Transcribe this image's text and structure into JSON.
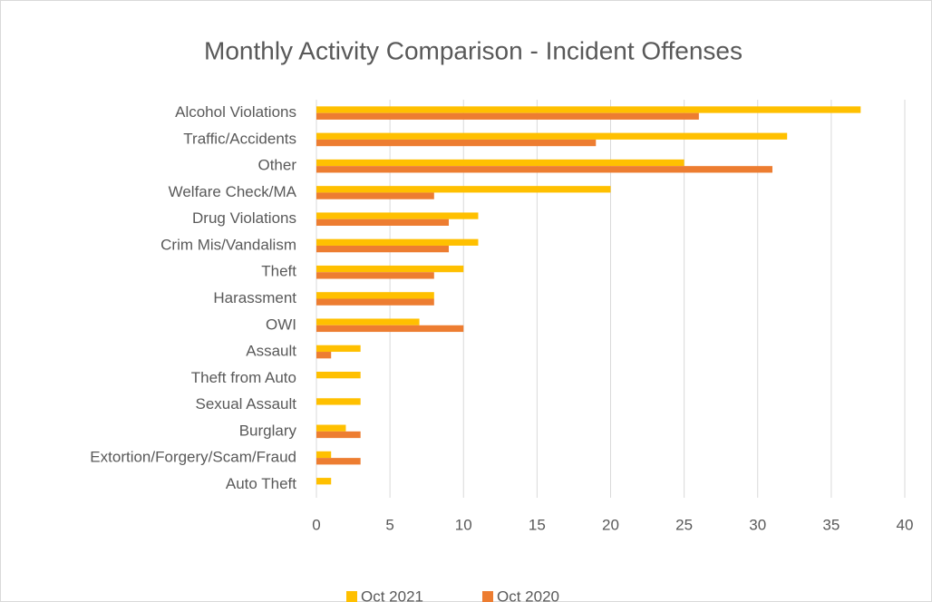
{
  "chart_data": {
    "type": "bar",
    "orientation": "horizontal",
    "title": "Monthly Activity Comparison - Incident Offenses",
    "categories": [
      "Alcohol Violations",
      "Traffic/Accidents",
      "Other",
      "Welfare Check/MA",
      "Drug Violations",
      "Crim Mis/Vandalism",
      "Theft",
      "Harassment",
      "OWI",
      "Assault",
      "Theft from Auto",
      "Sexual Assault",
      "Burglary",
      "Extortion/Forgery/Scam/Fraud",
      "Auto Theft"
    ],
    "series": [
      {
        "name": "Oct 2021",
        "color": "#FFC000",
        "values": [
          37,
          32,
          25,
          20,
          11,
          11,
          10,
          8,
          7,
          3,
          3,
          3,
          2,
          1,
          1
        ]
      },
      {
        "name": "Oct 2020",
        "color": "#ED7D31",
        "values": [
          26,
          19,
          31,
          8,
          9,
          9,
          8,
          8,
          10,
          1,
          0,
          0,
          3,
          3,
          0
        ]
      }
    ],
    "xlim": [
      0,
      40
    ],
    "xticks": [
      0,
      5,
      10,
      15,
      20,
      25,
      30,
      35,
      40
    ],
    "grid": true,
    "legend": "bottom"
  }
}
